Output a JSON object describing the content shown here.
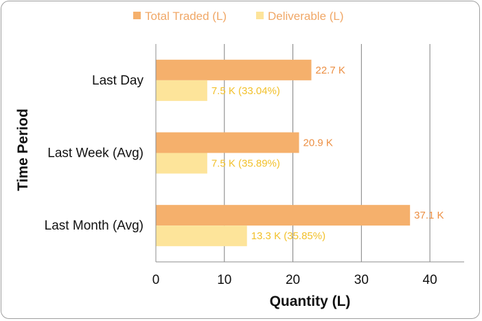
{
  "chart_data": {
    "type": "bar",
    "orientation": "horizontal",
    "categories": [
      "Last Day",
      "Last Week (Avg)",
      "Last Month (Avg)"
    ],
    "series": [
      {
        "name": "Total Traded (L)",
        "color": "#f5b06c",
        "label_color": "#ec8f43",
        "values": [
          22.7,
          20.9,
          37.1
        ],
        "labels": [
          "22.7 K",
          "20.9 K",
          "37.1 K"
        ]
      },
      {
        "name": "Deliverable (L)",
        "color": "#fde49a",
        "label_color": "#f2c02a",
        "values": [
          7.5,
          7.5,
          13.3
        ],
        "labels": [
          "7.5 K (33.04%)",
          "7.5 K (35.89%)",
          "13.3 K (35.85%)"
        ]
      }
    ],
    "xlabel": "Quantity (L)",
    "ylabel": "Time Period",
    "xlim": [
      0,
      45
    ],
    "xticks": [
      0,
      10,
      20,
      30,
      40
    ],
    "grid": "vertical",
    "legend": "top-center",
    "legend_text_color": "#f0a766"
  }
}
